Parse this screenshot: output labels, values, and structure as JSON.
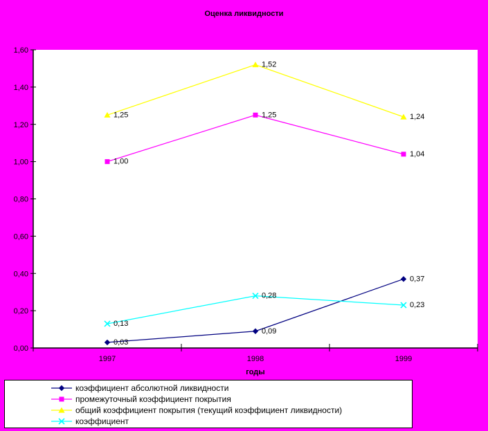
{
  "chart_data": {
    "type": "line",
    "title": "Оценка ликвидности",
    "xlabel": "годы",
    "ylabel": "",
    "categories": [
      "1997",
      "1998",
      "1999"
    ],
    "ylim": [
      0,
      1.6
    ],
    "ytick_step": 0.2,
    "ytick_labels": [
      "0,00",
      "0,20",
      "0,40",
      "0,60",
      "0,80",
      "1,00",
      "1,20",
      "1,40",
      "1,60"
    ],
    "grid": false,
    "legend_position": "bottom-left",
    "background_color": "#FF00FF",
    "plot_background_color": "#FFFFFF",
    "axis_color": "#000000",
    "text_color": "#000000",
    "series": [
      {
        "name": "коэффициент абсолютной ликвидности",
        "color": "#000080",
        "marker": "diamond",
        "values": [
          0.03,
          0.09,
          0.37
        ],
        "labels": [
          "0,03",
          "0,09",
          "0,37"
        ]
      },
      {
        "name": "промежуточный коэффициент покрытия",
        "color": "#FF00FF",
        "marker": "square",
        "values": [
          1.0,
          1.25,
          1.04
        ],
        "labels": [
          "1,00",
          "1,25",
          "1,04"
        ]
      },
      {
        "name": "общий коэффициент покрытия (текущий коэффициент ликвидности)",
        "color": "#FFFF00",
        "marker": "triangle",
        "values": [
          1.25,
          1.52,
          1.24
        ],
        "labels": [
          "1,25",
          "1,52",
          "1,24"
        ]
      },
      {
        "name": "коэффициент",
        "color": "#00FFFF",
        "marker": "x",
        "values": [
          0.13,
          0.28,
          0.23
        ],
        "labels": [
          "0,13",
          "0,28",
          "0,23"
        ]
      }
    ]
  }
}
